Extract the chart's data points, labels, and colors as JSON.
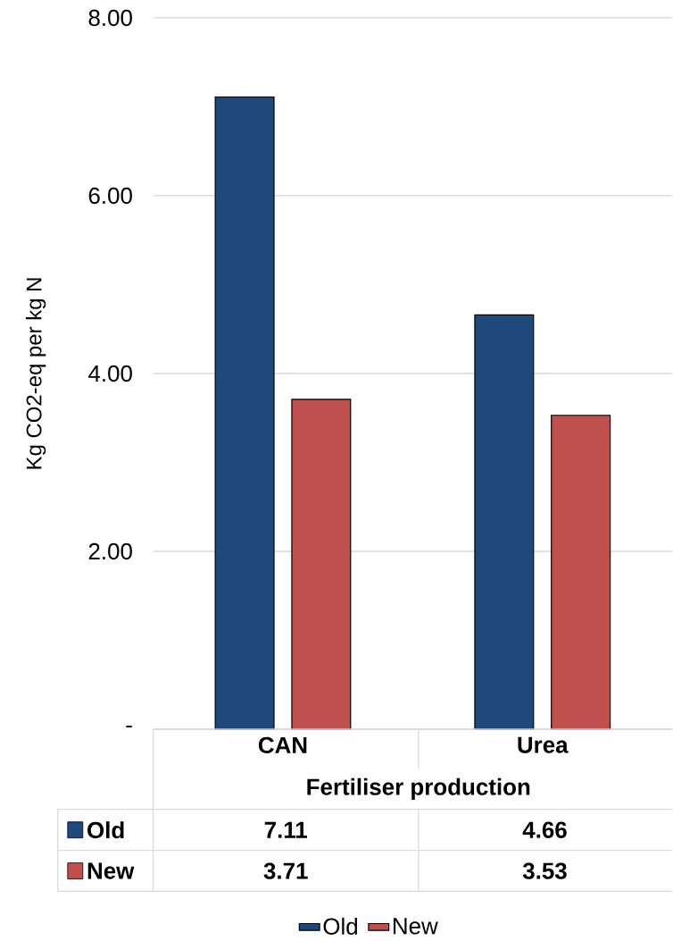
{
  "chart_data": {
    "type": "bar",
    "categories": [
      "CAN",
      "Urea"
    ],
    "xlabel": "Fertiliser production",
    "ylabel": "Kg CO2-eq per kg N",
    "series": [
      {
        "name": "Old",
        "color": "#1f497d",
        "values": [
          7.11,
          4.66
        ]
      },
      {
        "name": "New",
        "color": "#c0504d",
        "values": [
          3.71,
          3.53
        ]
      }
    ],
    "ylim": [
      0,
      8
    ],
    "yticks": [
      {
        "value": 0,
        "label": "-"
      },
      {
        "value": 2,
        "label": "2.00"
      },
      {
        "value": 4,
        "label": "4.00"
      },
      {
        "value": 6,
        "label": "6.00"
      },
      {
        "value": 8,
        "label": "8.00"
      }
    ],
    "grid": "y",
    "legend": "bottom",
    "data_labels": true
  }
}
